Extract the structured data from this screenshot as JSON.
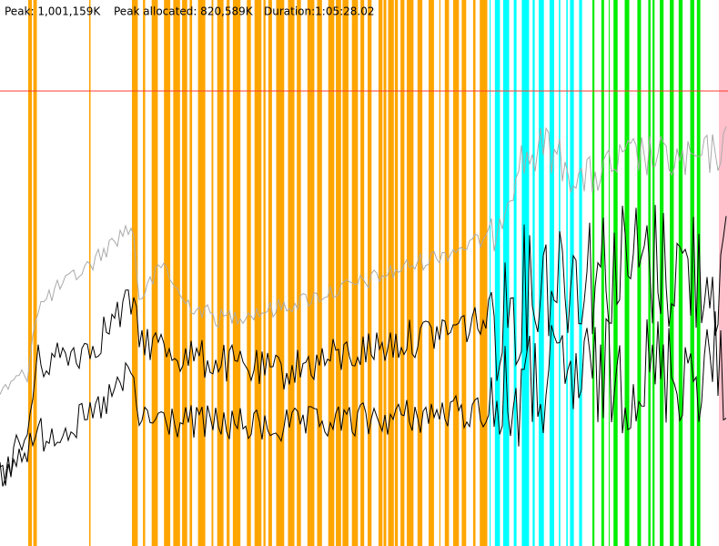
{
  "header": {
    "peak": "Peak: 1,001,159K",
    "peak_allocated": "Peak allocated: 820,589K",
    "duration": "Duration:1:05:28.02"
  }
}
